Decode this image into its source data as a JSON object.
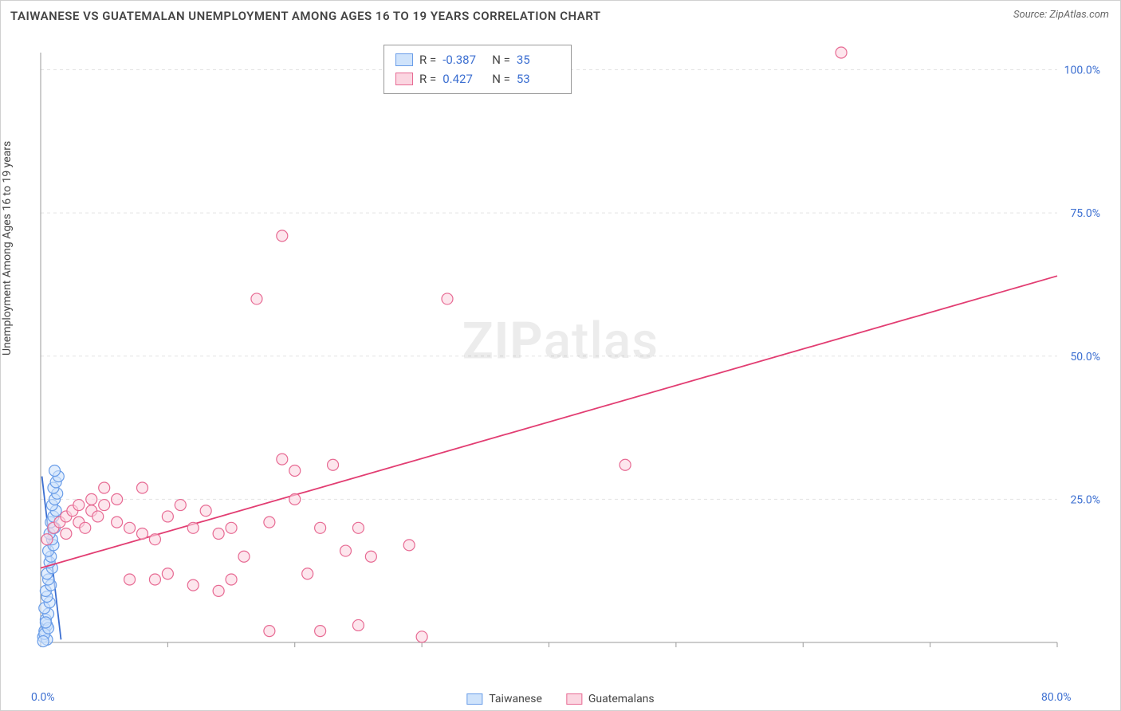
{
  "title": "TAIWANESE VS GUATEMALAN UNEMPLOYMENT AMONG AGES 16 TO 19 YEARS CORRELATION CHART",
  "source": "Source: ZipAtlas.com",
  "ylabel": "Unemployment Among Ages 16 to 19 years",
  "watermark_a": "ZIP",
  "watermark_b": "atlas",
  "chart": {
    "type": "scatter",
    "background_color": "#ffffff",
    "grid_color": "#e3e3e3",
    "border_color": "#d0d0d0",
    "axis_text_color": "#3c6fd1",
    "xlim": [
      0,
      80
    ],
    "ylim": [
      0,
      103
    ],
    "x_ticks": [
      0,
      10,
      20,
      30,
      40,
      50,
      60,
      70,
      80
    ],
    "x_tick_labels": {
      "0": "0.0%",
      "80": "80.0%"
    },
    "y_ticks": [
      25,
      50,
      75,
      100
    ],
    "y_tick_labels": {
      "25": "25.0%",
      "50": "50.0%",
      "75": "75.0%",
      "100": "100.0%"
    },
    "marker_radius": 7,
    "marker_stroke_width": 1.2,
    "line_width": 1.8,
    "series": [
      {
        "name": "Taiwanese",
        "fill": "#cfe3fb",
        "stroke": "#6a9de8",
        "line_color": "#3c6fd1",
        "R": "-0.387",
        "N": "35",
        "points": [
          [
            0.2,
            1
          ],
          [
            0.3,
            2
          ],
          [
            0.5,
            3
          ],
          [
            0.4,
            4
          ],
          [
            0.6,
            5
          ],
          [
            0.3,
            6
          ],
          [
            0.7,
            7
          ],
          [
            0.5,
            8
          ],
          [
            0.4,
            9
          ],
          [
            0.8,
            10
          ],
          [
            0.6,
            11
          ],
          [
            0.5,
            12
          ],
          [
            0.9,
            13
          ],
          [
            0.7,
            14
          ],
          [
            0.8,
            15
          ],
          [
            0.6,
            16
          ],
          [
            1.0,
            17
          ],
          [
            0.9,
            18
          ],
          [
            0.7,
            19
          ],
          [
            1.1,
            20
          ],
          [
            0.8,
            21
          ],
          [
            1.0,
            22
          ],
          [
            1.2,
            23
          ],
          [
            0.9,
            24
          ],
          [
            1.1,
            25
          ],
          [
            1.3,
            26
          ],
          [
            1.0,
            27
          ],
          [
            1.2,
            28
          ],
          [
            1.4,
            29
          ],
          [
            1.1,
            30
          ],
          [
            0.5,
            0.5
          ],
          [
            0.3,
            1.5
          ],
          [
            0.6,
            2.5
          ],
          [
            0.4,
            3.5
          ],
          [
            0.2,
            0.2
          ]
        ],
        "trend": [
          [
            0.1,
            29
          ],
          [
            1.6,
            0.5
          ]
        ]
      },
      {
        "name": "Guatemalans",
        "fill": "#fbd6e1",
        "stroke": "#e76a93",
        "line_color": "#e23d72",
        "R": "0.427",
        "N": "53",
        "points": [
          [
            0.5,
            18
          ],
          [
            1,
            20
          ],
          [
            1.5,
            21
          ],
          [
            2,
            19
          ],
          [
            2,
            22
          ],
          [
            2.5,
            23
          ],
          [
            3,
            21
          ],
          [
            3,
            24
          ],
          [
            3.5,
            20
          ],
          [
            4,
            23
          ],
          [
            4,
            25
          ],
          [
            4.5,
            22
          ],
          [
            5,
            27
          ],
          [
            5,
            24
          ],
          [
            6,
            21
          ],
          [
            6,
            25
          ],
          [
            7,
            11
          ],
          [
            7,
            20
          ],
          [
            8,
            27
          ],
          [
            8,
            19
          ],
          [
            9,
            11
          ],
          [
            9,
            18
          ],
          [
            10,
            22
          ],
          [
            10,
            12
          ],
          [
            11,
            24
          ],
          [
            12,
            20
          ],
          [
            12,
            10
          ],
          [
            13,
            23
          ],
          [
            14,
            9
          ],
          [
            14,
            19
          ],
          [
            15,
            11
          ],
          [
            15,
            20
          ],
          [
            16,
            15
          ],
          [
            17,
            60
          ],
          [
            18,
            2
          ],
          [
            18,
            21
          ],
          [
            19,
            32
          ],
          [
            19,
            71
          ],
          [
            20,
            25
          ],
          [
            20,
            30
          ],
          [
            21,
            12
          ],
          [
            22,
            20
          ],
          [
            22,
            2
          ],
          [
            23,
            31
          ],
          [
            24,
            16
          ],
          [
            25,
            3
          ],
          [
            25,
            20
          ],
          [
            26,
            15
          ],
          [
            29,
            17
          ],
          [
            30,
            1
          ],
          [
            32,
            60
          ],
          [
            46,
            31
          ],
          [
            63,
            103
          ]
        ],
        "trend": [
          [
            0,
            13
          ],
          [
            80,
            64
          ]
        ]
      }
    ]
  },
  "stats_legend": {
    "rows": [
      {
        "sw_fill": "#cfe3fb",
        "sw_stroke": "#6a9de8",
        "R_label": "R =",
        "R": "-0.387",
        "N_label": "N =",
        "N": "35"
      },
      {
        "sw_fill": "#fbd6e1",
        "sw_stroke": "#e76a93",
        "R_label": "R =",
        "R": "0.427",
        "N_label": "N =",
        "N": "53"
      }
    ]
  },
  "bottom_legend": {
    "items": [
      {
        "sw_fill": "#cfe3fb",
        "sw_stroke": "#6a9de8",
        "label": "Taiwanese"
      },
      {
        "sw_fill": "#fbd6e1",
        "sw_stroke": "#e76a93",
        "label": "Guatemalans"
      }
    ]
  }
}
